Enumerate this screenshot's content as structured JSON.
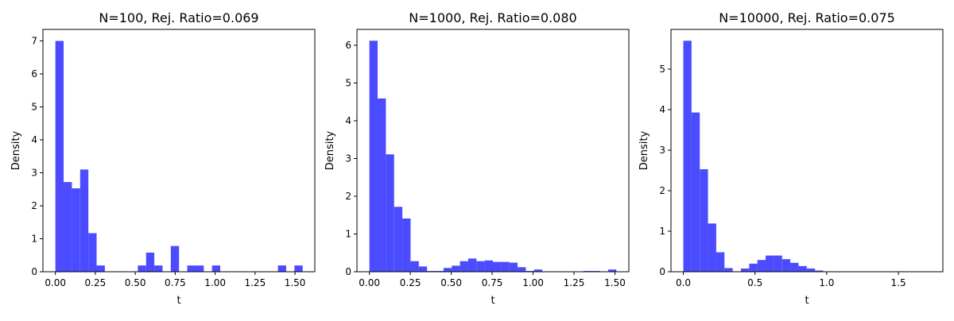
{
  "chart_data": [
    {
      "type": "bar",
      "title": "N=100, Rej. Ratio=0.069",
      "xlabel": "t",
      "ylabel": "Density",
      "xlim": [
        -0.078,
        1.624
      ],
      "ylim": [
        0,
        7.35
      ],
      "xticks": [
        0.0,
        0.25,
        0.5,
        0.75,
        1.0,
        1.25,
        1.5
      ],
      "xtick_labels": [
        "0.00",
        "0.25",
        "0.50",
        "0.75",
        "1.00",
        "1.25",
        "1.50"
      ],
      "yticks": [
        0,
        1,
        2,
        3,
        4,
        5,
        6,
        7
      ],
      "ytick_labels": [
        "0",
        "1",
        "2",
        "3",
        "4",
        "5",
        "6",
        "7"
      ],
      "color": "#4b4bff",
      "bin_start": 0.0,
      "bin_width": 0.0516,
      "values": [
        7.0,
        2.72,
        2.53,
        3.1,
        1.17,
        0.19,
        0,
        0,
        0,
        0,
        0.19,
        0.58,
        0.19,
        0,
        0.78,
        0,
        0.19,
        0.19,
        0,
        0.19,
        0,
        0,
        0,
        0,
        0,
        0,
        0,
        0.19,
        0,
        0.19
      ]
    },
    {
      "type": "bar",
      "title": "N=1000, Rej. Ratio=0.080",
      "xlabel": "t",
      "ylabel": "Density",
      "xlim": [
        -0.076,
        1.585
      ],
      "ylim": [
        0,
        6.42
      ],
      "xticks": [
        0.0,
        0.25,
        0.5,
        0.75,
        1.0,
        1.25,
        1.5
      ],
      "xtick_labels": [
        "0.00",
        "0.25",
        "0.50",
        "0.75",
        "1.00",
        "1.25",
        "1.50"
      ],
      "yticks": [
        0,
        1,
        2,
        3,
        4,
        5,
        6
      ],
      "ytick_labels": [
        "0",
        "1",
        "2",
        "3",
        "4",
        "5",
        "6"
      ],
      "color": "#4b4bff",
      "bin_start": 0.0,
      "bin_width": 0.0503,
      "values": [
        6.12,
        4.59,
        3.11,
        1.72,
        1.41,
        0.28,
        0.14,
        0.02,
        0.02,
        0.1,
        0.16,
        0.28,
        0.35,
        0.28,
        0.3,
        0.26,
        0.26,
        0.24,
        0.12,
        0.02,
        0.06,
        0,
        0,
        0,
        0,
        0,
        0.02,
        0.02,
        0,
        0.06
      ]
    },
    {
      "type": "bar",
      "title": "N=10000, Rej. Ratio=0.075",
      "xlabel": "t",
      "ylabel": "Density",
      "xlim": [
        -0.086,
        1.81
      ],
      "ylim": [
        0,
        5.98
      ],
      "xticks": [
        0.0,
        0.5,
        1.0,
        1.5
      ],
      "xtick_labels": [
        "0.0",
        "0.5",
        "1.0",
        "1.5"
      ],
      "yticks": [
        0,
        1,
        2,
        3,
        4,
        5
      ],
      "ytick_labels": [
        "0",
        "1",
        "2",
        "3",
        "4",
        "5"
      ],
      "color": "#4b4bff",
      "bin_start": 0.0,
      "bin_width": 0.0574,
      "values": [
        5.7,
        3.93,
        2.53,
        1.19,
        0.48,
        0.09,
        0.01,
        0.08,
        0.2,
        0.29,
        0.4,
        0.4,
        0.31,
        0.22,
        0.14,
        0.08,
        0.03,
        0.01,
        0,
        0,
        0,
        0,
        0.01,
        0.01,
        0.01,
        0.01,
        0.01,
        0.01,
        0.01,
        0.01
      ]
    }
  ]
}
